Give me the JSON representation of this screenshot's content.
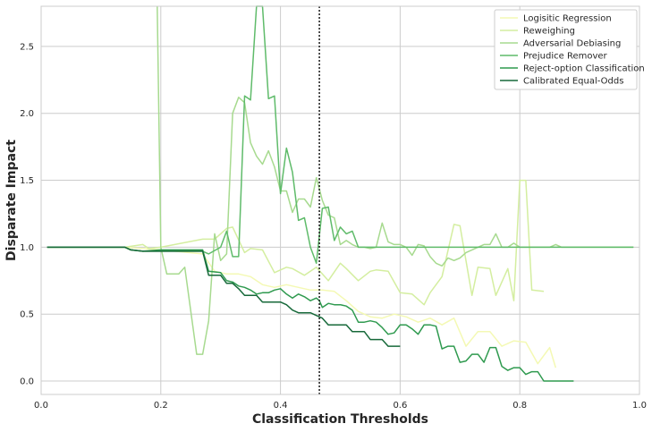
{
  "chart_data": {
    "type": "line",
    "title": "",
    "xlabel": "Classification Thresholds",
    "ylabel": "Disparate Impact",
    "xlim": [
      0.0,
      1.0
    ],
    "ylim": [
      -0.1,
      2.8
    ],
    "xticks": [
      "0.0",
      "0.2",
      "0.4",
      "0.6",
      "0.8",
      "1.0"
    ],
    "yticks": [
      "0.0",
      "0.5",
      "1.0",
      "1.5",
      "2.0",
      "2.5"
    ],
    "grid": true,
    "legend_position": "top-right",
    "vline": {
      "x": 0.465,
      "style": "dotted",
      "color": "#262626"
    },
    "series": [
      {
        "name": "Logisitic Regression",
        "color": "#f4f9b4",
        "x": [
          0.01,
          0.14,
          0.2,
          0.27,
          0.29,
          0.31,
          0.33,
          0.35,
          0.37,
          0.39,
          0.41,
          0.43,
          0.45,
          0.47,
          0.49,
          0.51,
          0.53,
          0.55,
          0.57,
          0.59,
          0.61,
          0.63,
          0.65,
          0.67,
          0.69,
          0.71,
          0.73,
          0.75,
          0.77,
          0.79,
          0.81,
          0.83,
          0.85,
          0.86
        ],
        "y": [
          1.0,
          1.0,
          0.98,
          0.95,
          0.82,
          0.8,
          0.8,
          0.78,
          0.72,
          0.7,
          0.72,
          0.7,
          0.68,
          0.68,
          0.67,
          0.6,
          0.52,
          0.48,
          0.47,
          0.5,
          0.48,
          0.44,
          0.47,
          0.42,
          0.47,
          0.26,
          0.37,
          0.37,
          0.26,
          0.3,
          0.29,
          0.13,
          0.25,
          0.1
        ]
      },
      {
        "name": "Reweighing",
        "color": "#d4eea0",
        "x": [
          0.01,
          0.14,
          0.17,
          0.18,
          0.2,
          0.27,
          0.29,
          0.31,
          0.32,
          0.34,
          0.35,
          0.37,
          0.39,
          0.41,
          0.42,
          0.44,
          0.46,
          0.48,
          0.5,
          0.51,
          0.53,
          0.55,
          0.56,
          0.58,
          0.6,
          0.62,
          0.64,
          0.65,
          0.67,
          0.69,
          0.7,
          0.72,
          0.73,
          0.75,
          0.76,
          0.78,
          0.79,
          0.8,
          0.81,
          0.82,
          0.84
        ],
        "y": [
          1.0,
          1.0,
          1.02,
          0.99,
          1.0,
          1.06,
          1.06,
          1.14,
          1.15,
          0.96,
          0.99,
          0.98,
          0.81,
          0.85,
          0.84,
          0.79,
          0.85,
          0.75,
          0.88,
          0.84,
          0.75,
          0.82,
          0.83,
          0.82,
          0.66,
          0.65,
          0.57,
          0.66,
          0.78,
          1.17,
          1.16,
          0.64,
          0.85,
          0.84,
          0.64,
          0.84,
          0.6,
          1.5,
          1.5,
          0.68,
          0.67
        ]
      },
      {
        "name": "Adversarial Debiasing",
        "color": "#a7da8f",
        "x": [
          0.194,
          0.2,
          0.21,
          0.23,
          0.24,
          0.26,
          0.27,
          0.28,
          0.29,
          0.3,
          0.31,
          0.32,
          0.33,
          0.34,
          0.35,
          0.36,
          0.37,
          0.38,
          0.39,
          0.4,
          0.41,
          0.42,
          0.43,
          0.44,
          0.45,
          0.46,
          0.47,
          0.48,
          0.49,
          0.5,
          0.51,
          0.52,
          0.53,
          0.54,
          0.55,
          0.56,
          0.57,
          0.58,
          0.59,
          0.6,
          0.61,
          0.62,
          0.63,
          0.64,
          0.65,
          0.66,
          0.67,
          0.68,
          0.69,
          0.7,
          0.71,
          0.72,
          0.73,
          0.74,
          0.75,
          0.76,
          0.77,
          0.78,
          0.79,
          0.8,
          0.81,
          0.82,
          0.83,
          0.84,
          0.85,
          0.86,
          0.87,
          0.88,
          0.89,
          0.9,
          0.92,
          0.94,
          0.96,
          0.98,
          0.99
        ],
        "y": [
          2.8,
          1.0,
          0.8,
          0.8,
          0.85,
          0.2,
          0.2,
          0.45,
          1.1,
          0.9,
          0.95,
          2.0,
          2.12,
          2.08,
          1.78,
          1.68,
          1.62,
          1.72,
          1.6,
          1.42,
          1.42,
          1.26,
          1.36,
          1.36,
          1.3,
          1.52,
          1.35,
          1.24,
          1.22,
          1.02,
          1.05,
          1.02,
          1.0,
          1.0,
          0.99,
          1.0,
          1.18,
          1.04,
          1.02,
          1.02,
          1.0,
          0.94,
          1.02,
          1.01,
          0.93,
          0.88,
          0.86,
          0.92,
          0.9,
          0.92,
          0.96,
          0.98,
          1.0,
          1.02,
          1.02,
          1.1,
          1.0,
          1.0,
          1.03,
          1.0,
          1.0,
          1.0,
          1.0,
          1.0,
          1.0,
          1.02,
          1.0,
          1.0,
          1.0,
          1.0,
          1.0,
          1.0,
          1.0,
          1.0,
          1.0
        ]
      },
      {
        "name": "Prejudice Remover",
        "color": "#5fbb6a",
        "x": [
          0.01,
          0.14,
          0.15,
          0.17,
          0.2,
          0.27,
          0.28,
          0.3,
          0.31,
          0.32,
          0.33,
          0.34,
          0.35,
          0.36,
          0.37,
          0.38,
          0.39,
          0.4,
          0.41,
          0.42,
          0.43,
          0.44,
          0.45,
          0.46,
          0.47,
          0.48,
          0.49,
          0.5,
          0.51,
          0.52,
          0.53,
          0.54,
          0.55,
          0.56,
          0.57,
          0.58,
          0.59,
          0.6,
          0.61,
          0.62,
          0.63,
          0.64,
          0.65,
          0.66,
          0.67,
          0.68,
          0.69,
          0.7,
          0.71,
          0.72,
          0.73,
          0.74,
          0.75,
          0.76,
          0.77,
          0.78,
          0.79,
          0.8,
          0.81,
          0.82,
          0.83,
          0.85,
          0.87,
          0.9,
          0.93,
          0.96,
          0.99
        ],
        "y": [
          1.0,
          1.0,
          0.98,
          0.97,
          0.97,
          0.97,
          0.95,
          1.0,
          1.12,
          0.93,
          0.93,
          2.13,
          2.1,
          2.8,
          2.8,
          2.11,
          2.13,
          1.4,
          1.74,
          1.56,
          1.2,
          1.22,
          1.0,
          0.88,
          1.29,
          1.3,
          1.05,
          1.15,
          1.1,
          1.12,
          1.0,
          1.0,
          1.0,
          1.0,
          1.0,
          1.0,
          1.0,
          1.0,
          1.0,
          1.0,
          1.0,
          1.0,
          1.0,
          1.0,
          1.0,
          1.0,
          1.0,
          1.0,
          1.0,
          1.0,
          1.0,
          1.0,
          1.0,
          1.0,
          1.0,
          1.0,
          1.0,
          1.0,
          1.0,
          1.0,
          1.0,
          1.0,
          1.0,
          1.0,
          1.0,
          1.0,
          1.0
        ]
      },
      {
        "name": "Reject-option Classification",
        "color": "#2f9a4f",
        "x": [
          0.01,
          0.14,
          0.15,
          0.17,
          0.2,
          0.27,
          0.28,
          0.3,
          0.31,
          0.32,
          0.33,
          0.34,
          0.35,
          0.36,
          0.37,
          0.38,
          0.39,
          0.4,
          0.41,
          0.42,
          0.43,
          0.44,
          0.45,
          0.46,
          0.465,
          0.47,
          0.48,
          0.49,
          0.5,
          0.51,
          0.52,
          0.53,
          0.54,
          0.55,
          0.56,
          0.57,
          0.58,
          0.59,
          0.6,
          0.61,
          0.62,
          0.63,
          0.64,
          0.65,
          0.66,
          0.67,
          0.68,
          0.69,
          0.7,
          0.71,
          0.72,
          0.73,
          0.74,
          0.75,
          0.76,
          0.77,
          0.78,
          0.79,
          0.8,
          0.81,
          0.82,
          0.83,
          0.84,
          0.85,
          0.86,
          0.87,
          0.88,
          0.89
        ],
        "y": [
          1.0,
          1.0,
          0.98,
          0.97,
          0.98,
          0.98,
          0.82,
          0.81,
          0.75,
          0.74,
          0.71,
          0.7,
          0.68,
          0.65,
          0.66,
          0.66,
          0.68,
          0.69,
          0.65,
          0.62,
          0.65,
          0.63,
          0.6,
          0.62,
          0.6,
          0.55,
          0.58,
          0.57,
          0.57,
          0.56,
          0.53,
          0.44,
          0.44,
          0.45,
          0.44,
          0.4,
          0.35,
          0.36,
          0.42,
          0.42,
          0.39,
          0.35,
          0.42,
          0.42,
          0.41,
          0.24,
          0.26,
          0.26,
          0.14,
          0.15,
          0.2,
          0.2,
          0.14,
          0.25,
          0.25,
          0.11,
          0.08,
          0.1,
          0.1,
          0.05,
          0.07,
          0.07,
          0.0,
          0.0,
          0.0,
          0.0,
          0.0,
          0.0
        ]
      },
      {
        "name": "Calibrated Equal-Odds",
        "color": "#17693a",
        "x": [
          0.01,
          0.14,
          0.15,
          0.17,
          0.2,
          0.27,
          0.28,
          0.3,
          0.31,
          0.32,
          0.33,
          0.34,
          0.35,
          0.36,
          0.37,
          0.38,
          0.39,
          0.4,
          0.41,
          0.42,
          0.43,
          0.44,
          0.45,
          0.46,
          0.47,
          0.48,
          0.49,
          0.5,
          0.51,
          0.52,
          0.53,
          0.54,
          0.55,
          0.56,
          0.57,
          0.58,
          0.59,
          0.6
        ],
        "y": [
          1.0,
          1.0,
          0.98,
          0.97,
          0.97,
          0.97,
          0.79,
          0.79,
          0.73,
          0.73,
          0.69,
          0.64,
          0.64,
          0.64,
          0.59,
          0.59,
          0.59,
          0.59,
          0.57,
          0.53,
          0.51,
          0.51,
          0.51,
          0.49,
          0.47,
          0.42,
          0.42,
          0.42,
          0.42,
          0.37,
          0.37,
          0.37,
          0.31,
          0.31,
          0.31,
          0.26,
          0.26,
          0.26
        ]
      }
    ]
  }
}
